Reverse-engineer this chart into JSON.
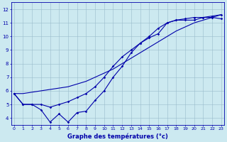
{
  "xlabel": "Graphe des températures (°c)",
  "bg_color": "#cce9f0",
  "line_color": "#0000aa",
  "grid_color": "#99bbcc",
  "xlim": [
    0,
    23
  ],
  "ylim": [
    3.5,
    12.5
  ],
  "yticks": [
    4,
    5,
    6,
    7,
    8,
    9,
    10,
    11,
    12
  ],
  "xticks": [
    0,
    1,
    2,
    3,
    4,
    5,
    6,
    7,
    8,
    9,
    10,
    11,
    12,
    13,
    14,
    15,
    16,
    17,
    18,
    19,
    20,
    21,
    22,
    23
  ],
  "line_jagged": [
    5.8,
    5.0,
    5.0,
    4.6,
    3.7,
    4.3,
    3.7,
    4.4,
    4.5,
    5.3,
    6.0,
    7.0,
    7.8,
    8.8,
    9.5,
    9.9,
    10.2,
    11.0,
    11.2,
    11.2,
    11.2,
    11.4,
    11.4,
    11.3
  ],
  "line_smooth": [
    5.8,
    5.0,
    5.0,
    5.0,
    4.8,
    5.0,
    5.2,
    5.5,
    5.8,
    6.3,
    7.0,
    7.8,
    8.5,
    9.0,
    9.5,
    10.0,
    10.6,
    11.0,
    11.2,
    11.3,
    11.4,
    11.4,
    11.5,
    11.6
  ],
  "line_straight": [
    5.8,
    5.8,
    5.9,
    6.0,
    6.1,
    6.2,
    6.3,
    6.5,
    6.7,
    7.0,
    7.3,
    7.6,
    8.0,
    8.4,
    8.8,
    9.2,
    9.6,
    10.0,
    10.4,
    10.7,
    11.0,
    11.2,
    11.4,
    11.6
  ]
}
